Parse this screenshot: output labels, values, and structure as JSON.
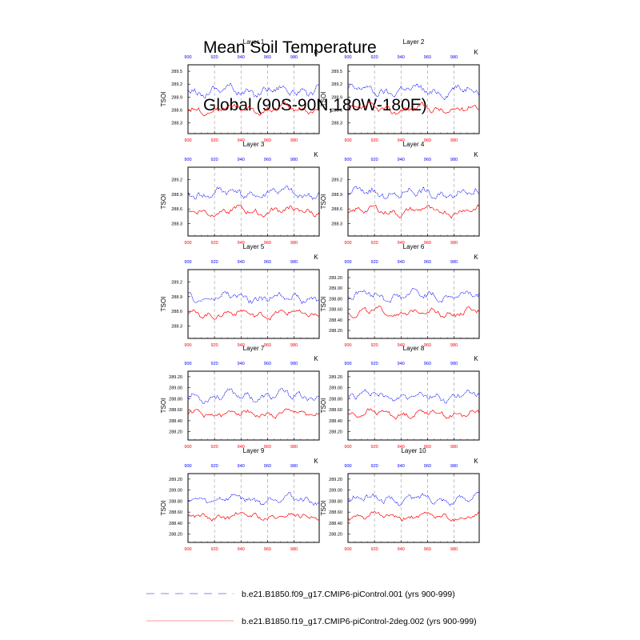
{
  "title": {
    "line1": "Mean Soil Temperature",
    "line2": "Global (90S-90N,180W-180E)"
  },
  "colors": {
    "blue": "#0000ff",
    "red": "#ff0000",
    "grid": "#999999"
  },
  "chart_data": {
    "type": "line",
    "units_label": "K",
    "ylabel": "TSOI",
    "x_ticks": [
      900,
      920,
      940,
      960,
      980
    ],
    "xlim": [
      900,
      999
    ],
    "top_axis_ticks": [
      900,
      920,
      940,
      960,
      980
    ],
    "legend": [
      {
        "name": "b.e21.B1850.f09_g17.CMIP6-piControl.001 (yrs 900-999)",
        "color": "#8888ee",
        "style": "dashed"
      },
      {
        "name": "b.e21.B1850.f19_g17.CMIP6-piControl-2deg.002 (yrs 900-999)",
        "color": "#ff9999",
        "style": "solid"
      }
    ],
    "panels": [
      {
        "title": "Layer 1",
        "ylim": [
          288.05,
          289.65
        ],
        "y_ticks": [
          "289.5",
          "289.2",
          "288.9",
          "288.6",
          "288.3"
        ],
        "blue_mean": 289.05,
        "blue_amp": 0.22,
        "red_mean": 288.62,
        "red_amp": 0.17,
        "seed": 11
      },
      {
        "title": "Layer 2",
        "ylim": [
          288.05,
          289.65
        ],
        "y_ticks": [
          "289.5",
          "289.2",
          "288.9",
          "288.6",
          "288.3"
        ],
        "blue_mean": 289.05,
        "blue_amp": 0.22,
        "red_mean": 288.62,
        "red_amp": 0.17,
        "seed": 12
      },
      {
        "title": "Layer 3",
        "ylim": [
          288.05,
          289.45
        ],
        "y_ticks": [
          "289.2",
          "288.9",
          "288.6",
          "288.3"
        ],
        "blue_mean": 288.92,
        "blue_amp": 0.19,
        "red_mean": 288.56,
        "red_amp": 0.15,
        "seed": 13
      },
      {
        "title": "Layer 4",
        "ylim": [
          288.05,
          289.45
        ],
        "y_ticks": [
          "289.2",
          "288.9",
          "288.6",
          "288.3"
        ],
        "blue_mean": 288.92,
        "blue_amp": 0.19,
        "red_mean": 288.56,
        "red_amp": 0.15,
        "seed": 14
      },
      {
        "title": "Layer 5",
        "ylim": [
          288.05,
          289.45
        ],
        "y_ticks": [
          "289.2",
          "288.9",
          "288.6",
          "288.3"
        ],
        "blue_mean": 288.88,
        "blue_amp": 0.17,
        "red_mean": 288.55,
        "red_amp": 0.14,
        "seed": 15
      },
      {
        "title": "Layer 6",
        "ylim": [
          288.05,
          289.35
        ],
        "y_ticks": [
          "289.20",
          "289.00",
          "288.80",
          "288.60",
          "288.40",
          "288.20"
        ],
        "blue_mean": 288.86,
        "blue_amp": 0.16,
        "red_mean": 288.54,
        "red_amp": 0.13,
        "seed": 16
      },
      {
        "title": "Layer 7",
        "ylim": [
          288.05,
          289.3
        ],
        "y_ticks": [
          "289.20",
          "289.00",
          "288.80",
          "288.60",
          "288.40",
          "288.20"
        ],
        "blue_mean": 288.85,
        "blue_amp": 0.15,
        "red_mean": 288.53,
        "red_amp": 0.12,
        "seed": 17
      },
      {
        "title": "Layer 8",
        "ylim": [
          288.05,
          289.3
        ],
        "y_ticks": [
          "289.20",
          "289.00",
          "288.80",
          "288.60",
          "288.40",
          "288.20"
        ],
        "blue_mean": 288.85,
        "blue_amp": 0.15,
        "red_mean": 288.53,
        "red_amp": 0.12,
        "seed": 18
      },
      {
        "title": "Layer 9",
        "ylim": [
          288.05,
          289.3
        ],
        "y_ticks": [
          "289.20",
          "289.00",
          "288.80",
          "288.60",
          "288.40",
          "288.20"
        ],
        "blue_mean": 288.84,
        "blue_amp": 0.14,
        "red_mean": 288.52,
        "red_amp": 0.11,
        "seed": 19
      },
      {
        "title": "Layer 10",
        "ylim": [
          288.05,
          289.3
        ],
        "y_ticks": [
          "289.20",
          "289.00",
          "288.80",
          "288.60",
          "288.40",
          "288.20"
        ],
        "blue_mean": 288.84,
        "blue_amp": 0.14,
        "red_mean": 288.52,
        "red_amp": 0.11,
        "seed": 20
      }
    ]
  }
}
